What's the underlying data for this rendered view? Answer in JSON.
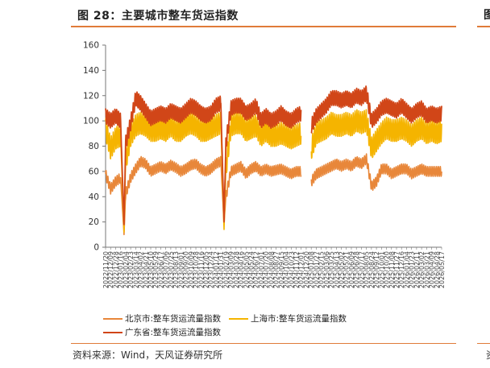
{
  "title": "图 28：主要城市整车货运指数",
  "right_partial_title": "图",
  "source": "资料来源：Wind，天风证券研究所",
  "right_partial_source": "资",
  "chart_data": {
    "type": "line",
    "title": "图 28：主要城市整车货运指数",
    "xlabel": "",
    "ylabel": "",
    "ylim": [
      0,
      160
    ],
    "yticks": [
      0,
      20,
      40,
      60,
      80,
      100,
      120,
      140,
      160
    ],
    "grid": false,
    "legend_position": "bottom",
    "x_tick_labels": [
      "2022/11/20",
      "2022/12/09",
      "2022/12/28",
      "2023/01/16",
      "2023/02/04",
      "2023/02/23",
      "2023/03/14",
      "2023/04/02",
      "2023/04/21",
      "2023/05/10",
      "2023/05/29",
      "2023/06/17",
      "2023/07/06",
      "2023/07/25",
      "2023/08/13",
      "2023/09/01",
      "2023/09/20",
      "2023/10/09",
      "2023/10/28",
      "2023/11/16",
      "2023/12/05",
      "2023/12/24",
      "2024/01/12",
      "2024/01/31",
      "2024/02/19",
      "2024/03/09",
      "2024/03/28",
      "2024/04/16",
      "2024/05/05",
      "2024/05/24",
      "2024/06/12",
      "2024/07/01",
      "2024/07/20",
      "2024/08/08",
      "2024/08/27",
      "2024/09/15",
      "2024/10/04",
      "2024/10/23",
      "2024/11/12",
      "2024/12/01",
      "2024/12/20",
      "2025/01/08",
      "2025/01/27",
      "2025/02/15",
      "2025/03/06",
      "2025/03/25",
      "2025/04/13",
      "2025/05/02",
      "2025/05/21",
      "2025/06/09",
      "2025/06/28",
      "2025/07/17",
      "2025/08/05",
      "2025/08/24",
      "2025/09/12",
      "2025/10/01",
      "2025/10/20",
      "2025/11/08",
      "2025/11/27",
      "2025/12/16",
      "2026/01/04",
      "2026/01/23",
      "2026/02/11",
      "2026/03/02",
      "2026/03/21",
      "2026/04/09",
      "2026/04/28",
      "2026/05/17"
    ],
    "x": [
      "2022/11/20",
      "2022/12/09",
      "2022/12/28",
      "2023/01/16",
      "2023/01/29",
      "2023/02/04",
      "2023/02/23",
      "2023/03/14",
      "2023/04/02",
      "2023/04/21",
      "2023/05/10",
      "2023/05/29",
      "2023/06/17",
      "2023/07/06",
      "2023/07/25",
      "2023/08/13",
      "2023/09/01",
      "2023/09/20",
      "2023/10/09",
      "2023/10/28",
      "2023/11/16",
      "2023/12/05",
      "2023/12/24",
      "2024/01/12",
      "2024/01/31",
      "2024/02/12",
      "2024/02/19",
      "2024/03/09",
      "2024/03/28",
      "2024/04/16",
      "2024/05/05",
      "2024/05/24",
      "2024/06/12",
      "2024/07/01",
      "2024/07/20",
      "2024/08/08",
      "2024/08/27",
      "2024/09/15",
      "2024/10/04",
      "2024/10/23",
      "2024/11/12",
      "2024/12/01",
      "2024/12/20",
      "2025/01/08",
      "2025/01/27",
      "2025/02/15",
      "2025/03/06",
      "2025/03/25",
      "2025/04/13",
      "2025/05/02",
      "2025/05/21",
      "2025/06/09",
      "2025/06/28",
      "2025/07/17",
      "2025/08/05",
      "2025/08/24",
      "2025/09/12",
      "2025/10/01",
      "2025/10/20",
      "2025/11/08",
      "2025/11/27",
      "2025/12/16",
      "2026/01/04",
      "2026/01/23",
      "2026/02/11",
      "2026/03/02",
      "2026/03/21",
      "2026/04/09",
      "2026/04/28",
      "2026/05/17"
    ],
    "series": [
      {
        "name": "北京市:整车货运流量指数",
        "color": "#e8873a",
        "values": [
          58,
          46,
          52,
          55,
          10,
          42,
          55,
          62,
          68,
          66,
          60,
          62,
          64,
          62,
          65,
          63,
          60,
          62,
          65,
          66,
          62,
          60,
          62,
          66,
          68,
          18,
          40,
          60,
          62,
          64,
          58,
          62,
          64,
          60,
          62,
          60,
          61,
          62,
          60,
          58,
          60,
          60,
          null,
          52,
          58,
          60,
          62,
          64,
          66,
          64,
          66,
          64,
          68,
          66,
          70,
          48,
          52,
          62,
          62,
          58,
          60,
          62,
          62,
          58,
          60,
          62,
          60,
          60,
          60,
          60
        ]
      },
      {
        "name": "上海市:整车货运流量指数",
        "color": "#f5b400",
        "values": [
          94,
          78,
          86,
          88,
          12,
          68,
          88,
          96,
          98,
          96,
          92,
          92,
          94,
          92,
          96,
          92,
          92,
          96,
          98,
          96,
          92,
          92,
          94,
          96,
          98,
          14,
          62,
          96,
          98,
          98,
          92,
          94,
          96,
          88,
          92,
          88,
          88,
          90,
          88,
          86,
          88,
          90,
          null,
          78,
          90,
          92,
          94,
          98,
          96,
          96,
          98,
          96,
          100,
          98,
          100,
          78,
          84,
          90,
          94,
          92,
          92,
          94,
          92,
          88,
          92,
          94,
          90,
          92,
          90,
          92
        ]
      },
      {
        "name": "广东省:整车货运流量指数",
        "color": "#d14618",
        "values": [
          104,
          100,
          104,
          100,
          18,
          82,
          98,
          118,
          114,
          108,
          102,
          104,
          106,
          104,
          108,
          106,
          104,
          108,
          112,
          110,
          106,
          104,
          106,
          112,
          114,
          20,
          82,
          110,
          112,
          112,
          106,
          108,
          112,
          100,
          104,
          100,
          102,
          106,
          102,
          100,
          104,
          106,
          null,
          96,
          104,
          108,
          112,
          118,
          118,
          116,
          118,
          116,
          120,
          118,
          122,
          100,
          104,
          110,
          112,
          110,
          108,
          112,
          108,
          104,
          108,
          110,
          104,
          106,
          104,
          106
        ]
      }
    ]
  }
}
